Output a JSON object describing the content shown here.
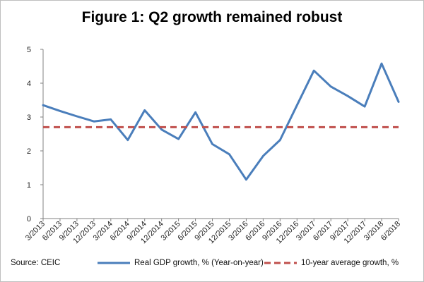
{
  "chart_data": {
    "type": "line",
    "title": "Figure 1: Q2 growth remained robust",
    "xlabel": "",
    "ylabel": "",
    "ylim": [
      0,
      5
    ],
    "yticks": [
      "0",
      "1",
      "2",
      "3",
      "4",
      "5"
    ],
    "grid": false,
    "legend_position": "bottom",
    "categories": [
      "3/2013",
      "6/2013",
      "9/2013",
      "12/2013",
      "3/2014",
      "6/2014",
      "9/2014",
      "12/2014",
      "3/2015",
      "6/2015",
      "9/2015",
      "12/2015",
      "3/2016",
      "6/2016",
      "9/2016",
      "12/2016",
      "3/2017",
      "6/2017",
      "9/2017",
      "12/2017",
      "3/2018",
      "6/2018"
    ],
    "series": [
      {
        "name": "Real GDP growth, % (Year-on-year)",
        "color": "#4a7ebb",
        "style": "solid",
        "values": [
          3.35,
          3.18,
          3.02,
          2.87,
          2.93,
          2.32,
          3.2,
          2.63,
          2.35,
          3.14,
          2.2,
          1.9,
          1.15,
          1.85,
          2.32,
          3.35,
          4.37,
          3.9,
          3.62,
          3.31,
          4.58,
          3.45
        ]
      },
      {
        "name": "10-year average growth, %",
        "color": "#c0504d",
        "style": "dashed",
        "values": [
          2.7,
          2.7,
          2.7,
          2.7,
          2.7,
          2.7,
          2.7,
          2.7,
          2.7,
          2.7,
          2.7,
          2.7,
          2.7,
          2.7,
          2.7,
          2.7,
          2.7,
          2.7,
          2.7,
          2.7,
          2.7,
          2.7
        ]
      }
    ]
  },
  "source": "Source: CEIC"
}
